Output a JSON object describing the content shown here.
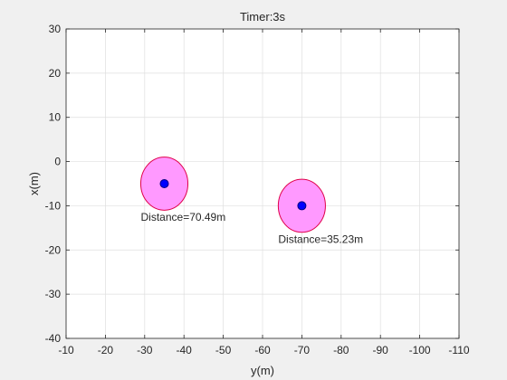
{
  "chart_data": {
    "type": "scatter",
    "title": "Timer:3s",
    "xlabel": "y(m)",
    "ylabel": "x(m)",
    "xlim": [
      -10,
      -110
    ],
    "ylim": [
      -40,
      30
    ],
    "x_reversed": true,
    "xticks": [
      -10,
      -20,
      -30,
      -40,
      -50,
      -60,
      -70,
      -80,
      -90,
      -100,
      -110
    ],
    "yticks": [
      -40,
      -30,
      -20,
      -10,
      0,
      10,
      20,
      30
    ],
    "xtick_labels": [
      "-10",
      "-20",
      "-30",
      "-40",
      "-50",
      "-60",
      "-70",
      "-80",
      "-90",
      "-100",
      "-110"
    ],
    "ytick_labels": [
      "-40",
      "-30",
      "-20",
      "-10",
      "0",
      "10",
      "20",
      "30"
    ],
    "grid": true,
    "points": [
      {
        "x": -35,
        "y": -5,
        "zone_radius": 6,
        "label": "Distance=70.49m"
      },
      {
        "x": -70,
        "y": -10,
        "zone_radius": 6,
        "label": "Distance=35.23m"
      }
    ],
    "colors": {
      "zone_fill": "#ff99ff",
      "zone_edge": "#e0004a",
      "marker_fill": "#0000ff",
      "marker_edge": "#000080",
      "axes_bg": "#ffffff",
      "figure_bg": "#f0f0f0",
      "grid": "#dfdfdf"
    }
  }
}
